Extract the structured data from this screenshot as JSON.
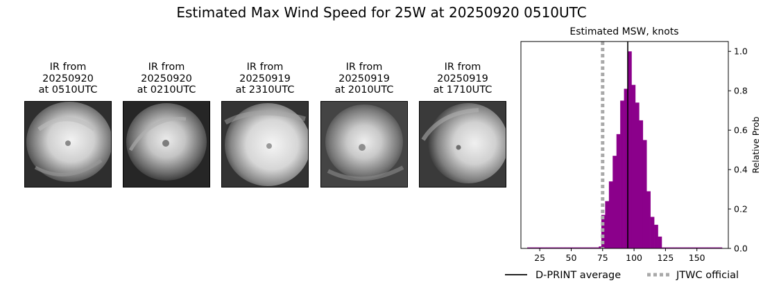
{
  "title": "Estimated Max Wind Speed for 25W at 20250920 0510UTC",
  "ir_panels": [
    {
      "line1": "IR from",
      "line2": "20250920",
      "line3": "at 0510UTC"
    },
    {
      "line1": "IR from",
      "line2": "20250920",
      "line3": "at 0210UTC"
    },
    {
      "line1": "IR from",
      "line2": "20250919",
      "line3": "at 2310UTC"
    },
    {
      "line1": "IR from",
      "line2": "20250919",
      "line3": "at 2010UTC"
    },
    {
      "line1": "IR from",
      "line2": "20250919",
      "line3": "at 1710UTC"
    }
  ],
  "chart_data": {
    "type": "bar",
    "title": "Estimated MSW, knots",
    "xlabel": "",
    "ylabel": "Relative Prob",
    "xlim": [
      10,
      175
    ],
    "ylim": [
      0,
      1.05
    ],
    "xticks": [
      25,
      50,
      75,
      100,
      125,
      150
    ],
    "yticks": [
      0.0,
      0.2,
      0.4,
      0.6,
      0.8,
      1.0
    ],
    "ytick_labels": [
      "0.0",
      "0.2",
      "0.4",
      "0.6",
      "0.8",
      "1.0"
    ],
    "y_axis_side": "right",
    "bar_color": "#8b008b",
    "bin_width": 3,
    "bins": [
      {
        "x": 15,
        "value": 0.005
      },
      {
        "x": 18,
        "value": 0.005
      },
      {
        "x": 21,
        "value": 0.005
      },
      {
        "x": 24,
        "value": 0.005
      },
      {
        "x": 27,
        "value": 0.005
      },
      {
        "x": 30,
        "value": 0.005
      },
      {
        "x": 33,
        "value": 0.005
      },
      {
        "x": 36,
        "value": 0.005
      },
      {
        "x": 39,
        "value": 0.005
      },
      {
        "x": 42,
        "value": 0.005
      },
      {
        "x": 45,
        "value": 0.005
      },
      {
        "x": 48,
        "value": 0.005
      },
      {
        "x": 51,
        "value": 0.005
      },
      {
        "x": 54,
        "value": 0.005
      },
      {
        "x": 57,
        "value": 0.005
      },
      {
        "x": 60,
        "value": 0.005
      },
      {
        "x": 63,
        "value": 0.005
      },
      {
        "x": 66,
        "value": 0.005
      },
      {
        "x": 69,
        "value": 0.005
      },
      {
        "x": 72,
        "value": 0.01
      },
      {
        "x": 74,
        "value": 0.17
      },
      {
        "x": 77,
        "value": 0.24
      },
      {
        "x": 80,
        "value": 0.34
      },
      {
        "x": 83,
        "value": 0.47
      },
      {
        "x": 86,
        "value": 0.58
      },
      {
        "x": 89,
        "value": 0.75
      },
      {
        "x": 92,
        "value": 0.81
      },
      {
        "x": 95,
        "value": 1.0
      },
      {
        "x": 98,
        "value": 0.83
      },
      {
        "x": 101,
        "value": 0.74
      },
      {
        "x": 104,
        "value": 0.65
      },
      {
        "x": 107,
        "value": 0.55
      },
      {
        "x": 110,
        "value": 0.29
      },
      {
        "x": 113,
        "value": 0.16
      },
      {
        "x": 116,
        "value": 0.12
      },
      {
        "x": 119,
        "value": 0.06
      },
      {
        "x": 122,
        "value": 0.005
      },
      {
        "x": 125,
        "value": 0.005
      },
      {
        "x": 128,
        "value": 0.005
      },
      {
        "x": 131,
        "value": 0.005
      },
      {
        "x": 134,
        "value": 0.005
      },
      {
        "x": 137,
        "value": 0.005
      },
      {
        "x": 140,
        "value": 0.005
      },
      {
        "x": 143,
        "value": 0.005
      },
      {
        "x": 146,
        "value": 0.005
      },
      {
        "x": 149,
        "value": 0.005
      },
      {
        "x": 152,
        "value": 0.005
      },
      {
        "x": 155,
        "value": 0.005
      },
      {
        "x": 158,
        "value": 0.005
      },
      {
        "x": 161,
        "value": 0.005
      },
      {
        "x": 164,
        "value": 0.005
      },
      {
        "x": 167,
        "value": 0.005
      }
    ],
    "reference_lines": [
      {
        "name": "D-PRINT average",
        "x": 95,
        "style": "solid",
        "color": "#000000"
      },
      {
        "name": "JTWC official",
        "x": 75,
        "style": "dotted",
        "color": "#a9a9a9"
      }
    ],
    "legend_position": "bottom-right",
    "grid": false
  }
}
